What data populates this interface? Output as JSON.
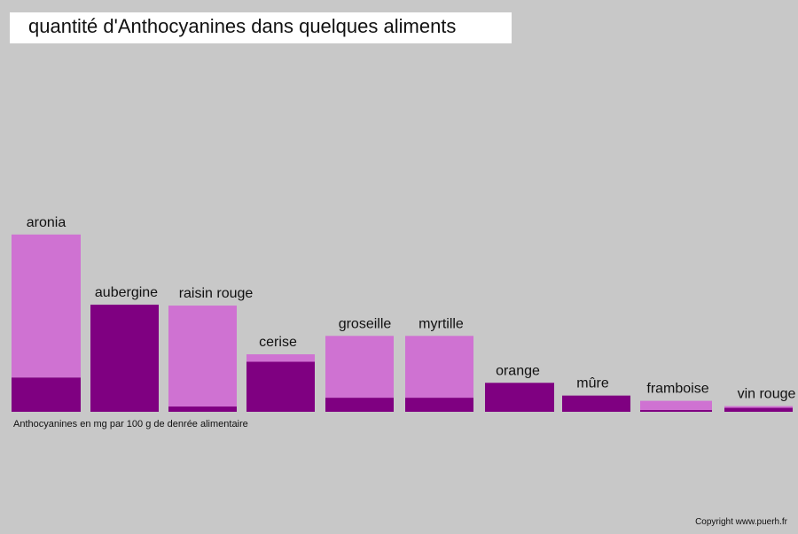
{
  "title": "quantité d'Anthocyanines dans quelques aliments",
  "caption": "Anthocyanines en mg par 100 g de denrée alimentaire",
  "copyright": "Copyright www.puerh.fr",
  "colors": {
    "background": "#c8c8c8",
    "light_bar": "#cf72d2",
    "dark_bar": "#7f0081"
  },
  "chart_data": {
    "type": "bar",
    "stacked": true,
    "categories": [
      "aronia",
      "aubergine",
      "raisin rouge",
      "cerise",
      "groseille",
      "myrtille",
      "orange",
      "mûre",
      "framboise",
      "vin rouge"
    ],
    "series": [
      {
        "values": [
          78,
          244,
          12,
          114,
          32,
          32,
          66,
          37,
          4,
          9
        ]
      },
      {
        "values": [
          326,
          0,
          230,
          17,
          141,
          141,
          0,
          0,
          21,
          4
        ]
      }
    ],
    "ylim": [
      0,
      420
    ],
    "grid": false,
    "legend": "none"
  }
}
